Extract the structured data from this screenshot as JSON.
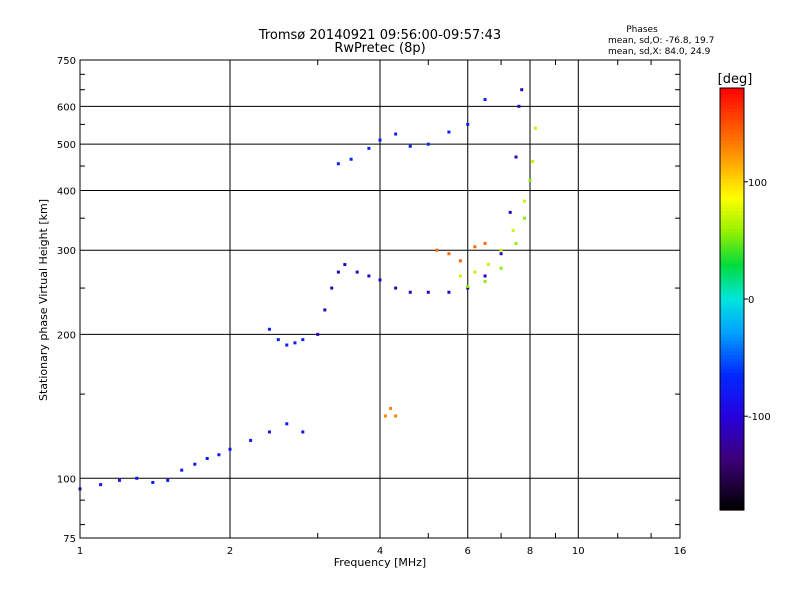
{
  "chart_data": {
    "type": "scatter",
    "title": "Tromsø 20140921 09:56:00-09:57:43",
    "subtitle": "RwPretec (8p)",
    "xlabel": "Frequency [MHz]",
    "ylabel": "Stationary phase Virtual Height [km]",
    "x_scale": "log",
    "y_scale": "log",
    "xlim": [
      1,
      16
    ],
    "ylim": [
      75,
      750
    ],
    "x_ticks": [
      1,
      2,
      4,
      6,
      8,
      10,
      16
    ],
    "y_ticks": [
      75,
      100,
      200,
      300,
      400,
      500,
      600,
      750
    ],
    "grid": true,
    "stats_box": {
      "title": "Phases",
      "line_o": "mean, sd,O: -76.8, 19.7",
      "line_x": "mean, sd,X:  84.0, 24.9"
    },
    "colorbar": {
      "label": "[deg]",
      "range": [
        -180,
        180
      ],
      "ticks": [
        100,
        0,
        -100
      ]
    },
    "traces": [
      {
        "phase": -80,
        "points": [
          [
            1.0,
            95
          ],
          [
            1.1,
            97
          ],
          [
            1.2,
            99
          ],
          [
            1.3,
            100
          ],
          [
            1.4,
            98
          ],
          [
            1.5,
            99
          ],
          [
            1.6,
            104
          ],
          [
            1.7,
            107
          ],
          [
            1.8,
            110
          ],
          [
            1.9,
            112
          ],
          [
            2.0,
            115
          ],
          [
            2.2,
            120
          ],
          [
            2.4,
            125
          ],
          [
            2.6,
            130
          ],
          [
            2.8,
            125
          ]
        ]
      },
      {
        "phase": -110,
        "points": [
          [
            3.0,
            200
          ],
          [
            3.1,
            225
          ],
          [
            3.2,
            250
          ],
          [
            3.3,
            270
          ],
          [
            3.4,
            280
          ],
          [
            3.6,
            270
          ],
          [
            3.8,
            265
          ],
          [
            4.0,
            260
          ],
          [
            4.3,
            250
          ],
          [
            4.6,
            245
          ],
          [
            5.0,
            245
          ],
          [
            5.5,
            245
          ],
          [
            6.0,
            250
          ],
          [
            6.5,
            265
          ],
          [
            7.0,
            295
          ],
          [
            7.3,
            360
          ],
          [
            7.5,
            470
          ],
          [
            7.6,
            600
          ],
          [
            7.7,
            650
          ]
        ]
      },
      {
        "phase": -70,
        "points": [
          [
            3.3,
            455
          ],
          [
            3.5,
            465
          ],
          [
            3.8,
            490
          ],
          [
            4.0,
            510
          ],
          [
            4.3,
            525
          ],
          [
            4.6,
            495
          ],
          [
            5.0,
            500
          ],
          [
            5.5,
            530
          ],
          [
            6.0,
            550
          ],
          [
            6.5,
            620
          ]
        ]
      },
      {
        "phase": -75,
        "points": [
          [
            2.4,
            205
          ],
          [
            2.5,
            195
          ],
          [
            2.6,
            190
          ],
          [
            2.7,
            192
          ],
          [
            2.8,
            195
          ]
        ]
      },
      {
        "phase": 70,
        "points": [
          [
            5.8,
            265
          ],
          [
            6.2,
            270
          ],
          [
            6.6,
            280
          ],
          [
            7.0,
            300
          ],
          [
            7.4,
            330
          ],
          [
            7.8,
            380
          ],
          [
            8.1,
            460
          ],
          [
            8.2,
            540
          ]
        ]
      },
      {
        "phase": 55,
        "points": [
          [
            6.0,
            252
          ],
          [
            6.5,
            258
          ],
          [
            7.0,
            275
          ],
          [
            7.5,
            310
          ],
          [
            7.8,
            350
          ],
          [
            8.0,
            420
          ]
        ]
      },
      {
        "phase": 140,
        "points": [
          [
            5.2,
            300
          ],
          [
            5.5,
            295
          ],
          [
            5.8,
            285
          ],
          [
            6.2,
            305
          ],
          [
            6.5,
            310
          ]
        ]
      },
      {
        "phase": 130,
        "points": [
          [
            4.1,
            135
          ],
          [
            4.2,
            140
          ],
          [
            4.3,
            135
          ]
        ]
      }
    ]
  }
}
